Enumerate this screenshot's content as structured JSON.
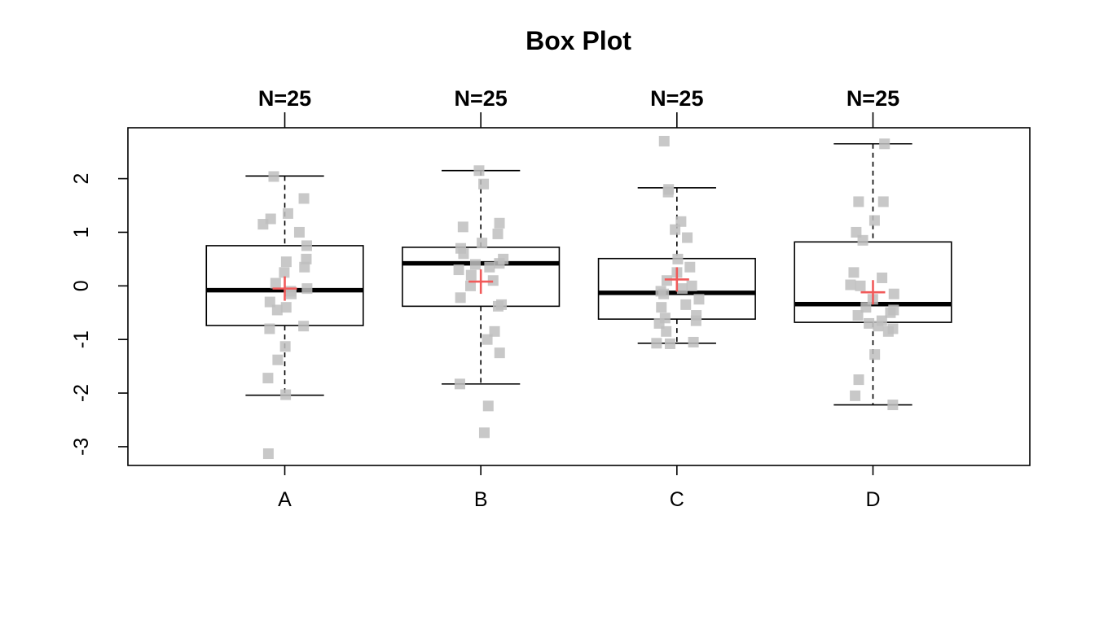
{
  "chart_data": {
    "type": "box",
    "title": "Box Plot",
    "xlabel": "",
    "ylabel": "",
    "ylim": [
      -3.35,
      2.95
    ],
    "y_ticks": [
      -3,
      -2,
      -1,
      0,
      1,
      2
    ],
    "y_tick_labels": [
      "-3",
      "-2",
      "-1",
      "0",
      "1",
      "2"
    ],
    "categories": [
      "A",
      "B",
      "C",
      "D"
    ],
    "top_labels": [
      "N=25",
      "N=25",
      "N=25",
      "N=25"
    ],
    "grid": false,
    "colors": {
      "box_stroke": "#000000",
      "median": "#000000",
      "point": "#bebebe",
      "mean_marker": "#f15a5a"
    },
    "boxes": [
      {
        "category": "A",
        "n": 25,
        "whisker_low": -2.04,
        "q1": -0.74,
        "median": -0.08,
        "q3": 0.75,
        "whisker_high": 2.05,
        "mean": -0.05,
        "points": [
          2.04,
          1.63,
          1.35,
          1.25,
          1.15,
          1.0,
          0.75,
          0.5,
          0.45,
          0.35,
          0.25,
          -0.05,
          -0.1,
          -0.15,
          -0.3,
          -0.4,
          -0.45,
          -0.75,
          -0.8,
          -1.13,
          -1.38,
          -1.72,
          -2.03,
          -3.13,
          0.05
        ]
      },
      {
        "category": "B",
        "n": 25,
        "whisker_low": -1.83,
        "q1": -0.38,
        "median": 0.42,
        "q3": 0.72,
        "whisker_high": 2.15,
        "mean": 0.08,
        "points": [
          2.15,
          1.9,
          1.17,
          1.1,
          0.97,
          0.8,
          0.7,
          0.6,
          0.5,
          0.42,
          0.4,
          0.35,
          0.2,
          0.1,
          0.0,
          -0.22,
          -0.35,
          -0.38,
          -0.85,
          -1.0,
          -1.25,
          -1.83,
          -2.24,
          -2.74,
          0.3
        ]
      },
      {
        "category": "C",
        "n": 25,
        "whisker_low": -1.07,
        "q1": -0.62,
        "median": -0.13,
        "q3": 0.51,
        "whisker_high": 1.83,
        "mean": 0.12,
        "points": [
          2.7,
          1.8,
          1.75,
          1.2,
          1.05,
          0.9,
          0.5,
          0.35,
          0.25,
          0.0,
          -0.05,
          -0.1,
          -0.15,
          -0.25,
          -0.35,
          -0.4,
          -0.55,
          -0.6,
          -0.65,
          -0.7,
          -0.85,
          -1.05,
          -1.07,
          -1.08,
          0.1
        ]
      },
      {
        "category": "D",
        "n": 25,
        "whisker_low": -2.22,
        "q1": -0.68,
        "median": -0.34,
        "q3": 0.82,
        "whisker_high": 2.65,
        "mean": -0.12,
        "points": [
          2.65,
          1.57,
          1.57,
          1.22,
          1.0,
          0.85,
          0.25,
          0.15,
          0.02,
          0.0,
          -0.15,
          -0.25,
          -0.4,
          -0.5,
          -0.55,
          -0.65,
          -0.7,
          -0.75,
          -0.8,
          -0.85,
          -1.28,
          -1.75,
          -2.05,
          -2.22,
          -0.45
        ]
      }
    ]
  }
}
